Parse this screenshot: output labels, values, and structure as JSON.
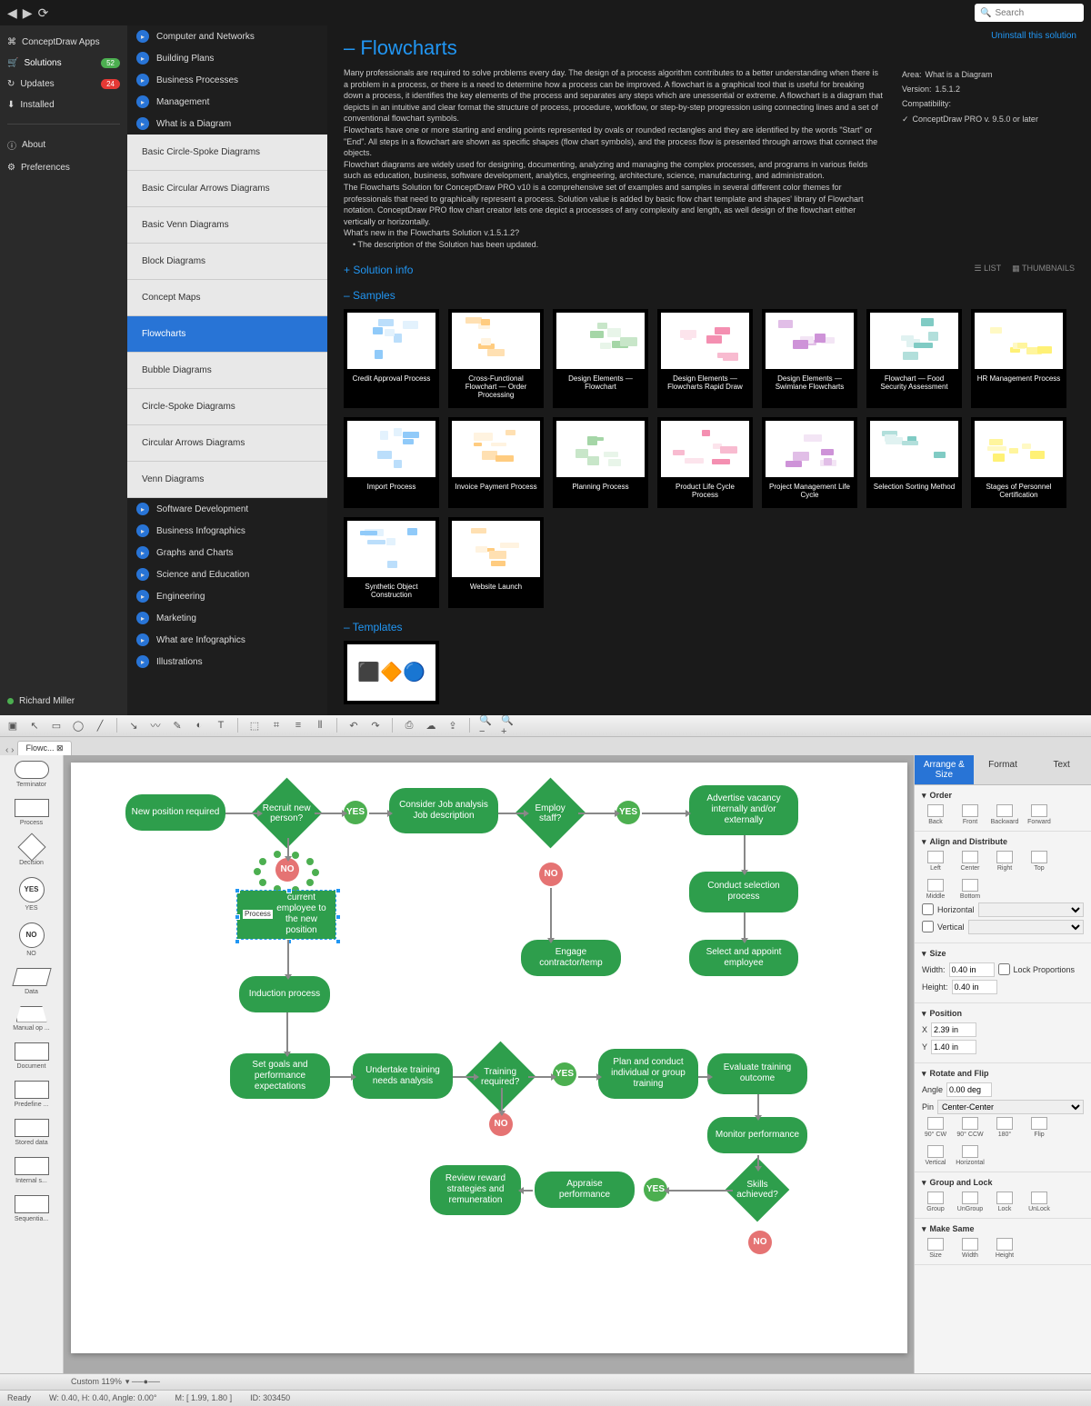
{
  "titlebar": {
    "search_placeholder": "Search"
  },
  "leftnav": {
    "items": [
      {
        "label": "ConceptDraw Apps",
        "icon": "apps"
      },
      {
        "label": "Solutions",
        "icon": "cart",
        "badge": "52",
        "active": true
      },
      {
        "label": "Updates",
        "icon": "refresh",
        "badge": "24",
        "badge_color": "red"
      },
      {
        "label": "Installed",
        "icon": "download"
      }
    ],
    "footer": [
      {
        "label": "About",
        "icon": "info"
      },
      {
        "label": "Preferences",
        "icon": "gear"
      }
    ],
    "user": "Richard Miller"
  },
  "categories": {
    "top": [
      "Computer and Networks",
      "Building Plans",
      "Business Processes",
      "Management",
      "What is a Diagram"
    ],
    "sub": [
      "Basic Circle-Spoke Diagrams",
      "Basic Circular Arrows Diagrams",
      "Basic Venn Diagrams",
      "Block Diagrams",
      "Concept Maps",
      "Flowcharts",
      "Bubble Diagrams",
      "Circle-Spoke Diagrams",
      "Circular Arrows Diagrams",
      "Venn Diagrams"
    ],
    "selected": "Flowcharts",
    "bottom": [
      "Software Development",
      "Business Infographics",
      "Graphs and Charts",
      "Science and Education",
      "Engineering",
      "Marketing",
      "What are Infographics",
      "Illustrations"
    ]
  },
  "content": {
    "uninstall": "Uninstall this solution",
    "title_prefix": "–",
    "title": "Flowcharts",
    "description": "Many professionals are required to solve problems every day. The design of a process algorithm contributes to a better understanding when there is a problem in a process, or there is a need to determine how a process can be improved. A flowchart is a graphical tool that is useful for breaking down a process, it identifies the key elements of the process and separates any steps which are unessential or extreme. A flowchart is a diagram that depicts in an intuitive and clear format the structure of process, procedure, workflow, or step-by-step progression using connecting lines and a set of conventional flowchart symbols.\nFlowcharts have one or more starting and ending points represented by ovals or rounded rectangles and they are identified by the words \"Start\" or \"End\". All steps in a flowchart are shown as specific shapes (flow chart symbols), and the process flow is presented through arrows that connect the objects.\nFlowchart diagrams are widely used for designing, documenting, analyzing and managing the complex processes, and programs in various fields such as education, business, software development, analytics, engineering, architecture, science, manufacturing, and administration.\nThe Flowcharts Solution for ConceptDraw PRO v10 is a comprehensive set of examples and samples in several different color themes for professionals that need to graphically represent a process. Solution value is added by basic flow chart template and shapes' library of Flowchart notation. ConceptDraw PRO flow chart creator lets one depict a processes of any complexity and length, as well design of the flowchart either vertically or horizontally.",
    "whatsnew_title": "What's new in the Flowcharts Solution v.1.5.1.2?",
    "whatsnew_item": "• The description of the Solution has been updated.",
    "meta": {
      "area_label": "Area:",
      "area": "What is a Diagram",
      "version_label": "Version:",
      "version": "1.5.1.2",
      "compat_label": "Compatibility:",
      "compat": "ConceptDraw PRO v. 9.5.0 or later"
    },
    "sections": {
      "info": "Solution info",
      "samples": "Samples",
      "templates": "Templates"
    },
    "view": {
      "list": "LIST",
      "thumbs": "THUMBNAILS"
    },
    "samples": [
      "Credit Approval Process",
      "Cross-Functional Flowchart — Order Processing",
      "Design Elements — Flowchart",
      "Design Elements — Flowcharts Rapid Draw",
      "Design Elements — Swimlane Flowcharts",
      "Flowchart — Food Security Assessment",
      "HR Management Process",
      "Import Process",
      "Invoice Payment Process",
      "Planning Process",
      "Product Life Cycle Process",
      "Project Management Life Cycle",
      "Selection Sorting Method",
      "Stages of Personnel Certification",
      "Synthetic Object Construction",
      "Website Launch"
    ]
  },
  "editor": {
    "tab": "Flowc...",
    "stencils": [
      "Terminator",
      "Process",
      "Decision",
      "YES",
      "NO",
      "Data",
      "Manual op ...",
      "Document",
      "Predefine ...",
      "Stored data",
      "Internal s...",
      "Sequentia..."
    ],
    "flowchart_nodes": {
      "n1": "New position required",
      "n2": "Recruit new person?",
      "n3": "Consider Job analysis Job description",
      "n4": "Employ staff?",
      "n5": "Advertise vacancy internally and/or externally",
      "n6": "Conduct selection process",
      "n7": "Select and appoint employee",
      "n8": "Engage contractor/temp",
      "n9": "Process current employee to the new position",
      "n10": "Induction process",
      "n11": "Set goals and performance expectations",
      "n12": "Undertake training needs analysis",
      "n13": "Training required?",
      "n14": "Plan and conduct individual or group training",
      "n15": "Evaluate training outcome",
      "n16": "Monitor performance",
      "n17": "Skills achieved?",
      "n18": "Appraise performance",
      "n19": "Review reward strategies and remuneration",
      "yes": "YES",
      "no": "NO"
    },
    "props": {
      "tabs": [
        "Arrange & Size",
        "Format",
        "Text"
      ],
      "order": {
        "title": "Order",
        "items": [
          "Back",
          "Front",
          "Backward",
          "Forward"
        ]
      },
      "align": {
        "title": "Align and Distribute",
        "items": [
          "Left",
          "Center",
          "Right",
          "Top",
          "Middle",
          "Bottom"
        ],
        "h": "Horizontal",
        "v": "Vertical"
      },
      "size": {
        "title": "Size",
        "w_label": "Width:",
        "w": "0.40 in",
        "h_label": "Height:",
        "h": "0.40 in",
        "lock": "Lock Proportions"
      },
      "position": {
        "title": "Position",
        "x_label": "X",
        "x": "2.39 in",
        "y_label": "Y",
        "y": "1.40 in"
      },
      "rotate": {
        "title": "Rotate and Flip",
        "angle_label": "Angle",
        "angle": "0.00 deg",
        "pin_label": "Pin",
        "pin": "Center-Center",
        "items": [
          "90° CW",
          "90° CCW",
          "180°",
          "Flip",
          "Vertical",
          "Horizontal"
        ]
      },
      "group": {
        "title": "Group and Lock",
        "items": [
          "Group",
          "UnGroup",
          "Lock",
          "UnLock"
        ]
      },
      "make": {
        "title": "Make Same",
        "items": [
          "Size",
          "Width",
          "Height"
        ]
      }
    },
    "zoom": "Custom 119%",
    "status": {
      "ready": "Ready",
      "dims": "W: 0.40, H: 0.40, Angle: 0.00°",
      "mouse": "M: [ 1.99, 1.80 ]",
      "id": "ID: 303450"
    }
  }
}
